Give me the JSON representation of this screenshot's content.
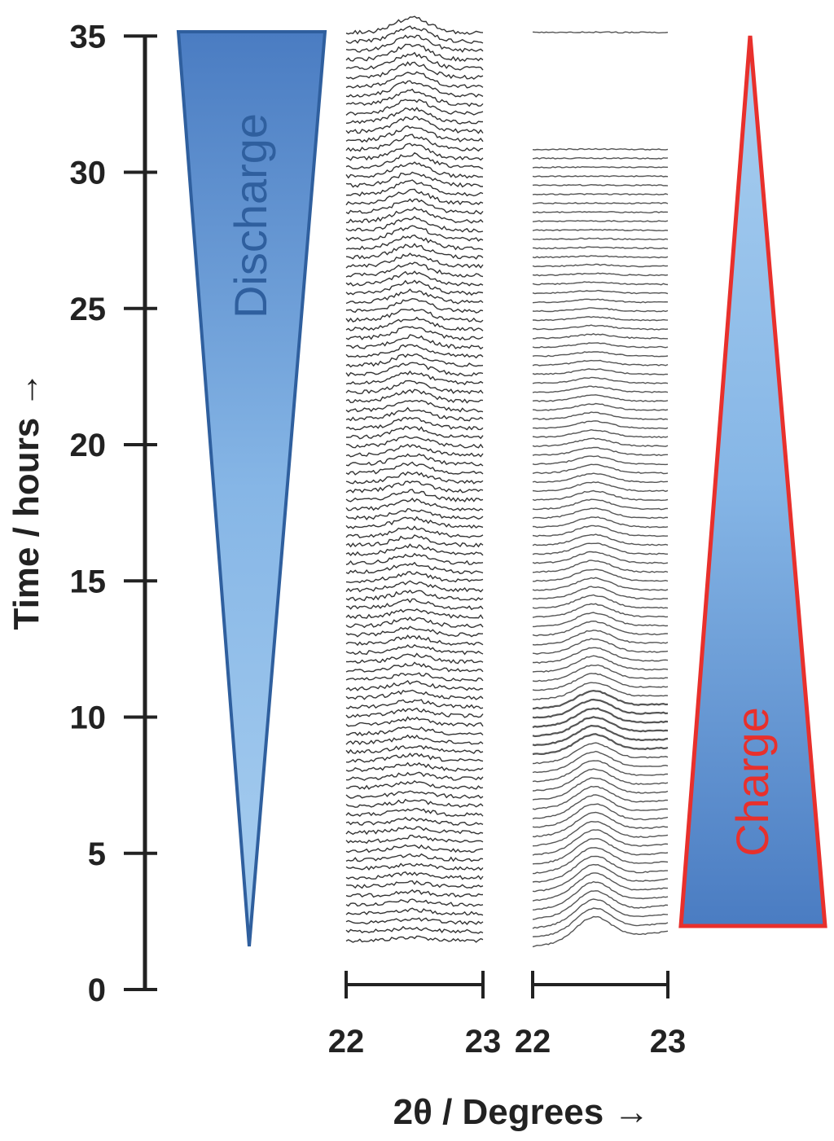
{
  "chart_data": {
    "type": "line",
    "y_axis": {
      "label": "Time / hours →",
      "ticks": [
        0,
        5,
        10,
        15,
        20,
        25,
        30,
        35
      ],
      "range": [
        0,
        35
      ]
    },
    "x_axis": {
      "label": "2θ / Degrees →",
      "panels": [
        {
          "ticks": [
            "22",
            "23"
          ],
          "range": [
            22,
            23
          ]
        },
        {
          "ticks": [
            "22",
            "23"
          ],
          "range": [
            22,
            23
          ]
        }
      ]
    },
    "series": [
      {
        "name": "Discharge",
        "time_range_hours": [
          1.8,
          35.3
        ],
        "scan_interval_hours": 0.33,
        "peak_position_deg": 22.48,
        "peak_intensity_trend": "low at start, increasing with time",
        "color": "#333333"
      },
      {
        "name": "Charge",
        "time_range_hours": [
          1.8,
          35.3
        ],
        "scan_interval_hours": 0.33,
        "peak_position_deg": 22.45,
        "peak_intensity_trend": "strong at start, decreasing to flat by end",
        "gap_hours": [
          31,
          35
        ],
        "color": "#555555"
      }
    ],
    "annotations": [
      {
        "text": "Discharge",
        "color": "#2f5f9e"
      },
      {
        "text": "Charge",
        "color": "#e8302c"
      }
    ],
    "colors": {
      "triangle_fill_dark": "#4a7cc2",
      "triangle_fill_light": "#9cc7ee",
      "discharge_border": "#2f5f9e",
      "charge_border": "#e8302c",
      "axis": "#222222"
    },
    "grid": false
  }
}
